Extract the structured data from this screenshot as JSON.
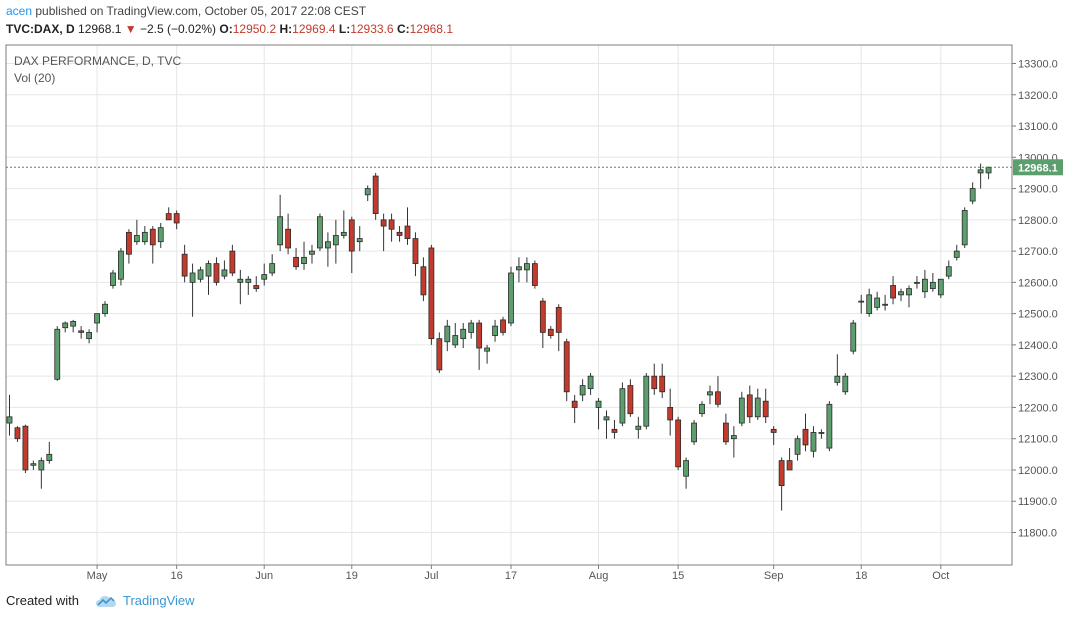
{
  "header": {
    "author": "acen",
    "published_text": "published on TradingView.com, October 05, 2017 22:08 CEST",
    "symbol": "TVC:DAX, D",
    "last": "12968.1",
    "change_arrow": "▼",
    "change": "−2.5 (−0.02%)",
    "o_label": "O:",
    "o_value": "12950.2",
    "h_label": "H:",
    "h_value": "12969.4",
    "l_label": "L:",
    "l_value": "12933.6",
    "c_label": "C:",
    "c_value": "12968.1"
  },
  "footer": {
    "created_with": "Created with",
    "brand": "TradingView"
  },
  "colors": {
    "up": "#5c9e6e",
    "down": "#c23b2c",
    "wick": "#333333",
    "grid": "#e6e6e6"
  },
  "chart_data": {
    "type": "candlestick",
    "title": "DAX PERFORMANCE, D, TVC",
    "indicator": "Vol (20)",
    "ylim": [
      11750,
      13350
    ],
    "yticks": [
      11800,
      11900,
      12000,
      12100,
      12200,
      12300,
      12400,
      12500,
      12600,
      12700,
      12800,
      12900,
      13000,
      13100,
      13200,
      13300
    ],
    "ytick_labels": [
      "11800.0",
      "11900.0",
      "12000.0",
      "12100.0",
      "12200.0",
      "12300.0",
      "12400.0",
      "12500.0",
      "12600.0",
      "12700.0",
      "12800.0",
      "12900.0",
      "13000.0",
      "13100.0",
      "13200.0",
      "13300.0"
    ],
    "xticks": [
      {
        "label": "May",
        "index": 11
      },
      {
        "label": "16",
        "index": 21
      },
      {
        "label": "Jun",
        "index": 32
      },
      {
        "label": "19",
        "index": 43
      },
      {
        "label": "Jul",
        "index": 53
      },
      {
        "label": "17",
        "index": 63
      },
      {
        "label": "Aug",
        "index": 74
      },
      {
        "label": "15",
        "index": 84
      },
      {
        "label": "Sep",
        "index": 96
      },
      {
        "label": "18",
        "index": 107
      },
      {
        "label": "Oct",
        "index": 117
      }
    ],
    "last_price": 12968.1,
    "last_price_label": "12968.1",
    "candles": [
      {
        "o": 12150,
        "h": 12240,
        "l": 12110,
        "c": 12170
      },
      {
        "o": 12135,
        "h": 12140,
        "l": 12090,
        "c": 12100
      },
      {
        "o": 12140,
        "h": 12145,
        "l": 11990,
        "c": 12000
      },
      {
        "o": 12015,
        "h": 12030,
        "l": 12000,
        "c": 12020
      },
      {
        "o": 12000,
        "h": 12040,
        "l": 11940,
        "c": 12030
      },
      {
        "o": 12030,
        "h": 12090,
        "l": 12020,
        "c": 12050
      },
      {
        "o": 12290,
        "h": 12460,
        "l": 12285,
        "c": 12450
      },
      {
        "o": 12455,
        "h": 12475,
        "l": 12440,
        "c": 12470
      },
      {
        "o": 12460,
        "h": 12480,
        "l": 12440,
        "c": 12475
      },
      {
        "o": 12445,
        "h": 12460,
        "l": 12420,
        "c": 12440
      },
      {
        "o": 12420,
        "h": 12450,
        "l": 12405,
        "c": 12440
      },
      {
        "o": 12470,
        "h": 12500,
        "l": 12440,
        "c": 12500
      },
      {
        "o": 12500,
        "h": 12540,
        "l": 12490,
        "c": 12530
      },
      {
        "o": 12590,
        "h": 12640,
        "l": 12580,
        "c": 12630
      },
      {
        "o": 12610,
        "h": 12710,
        "l": 12590,
        "c": 12700
      },
      {
        "o": 12760,
        "h": 12770,
        "l": 12660,
        "c": 12690
      },
      {
        "o": 12730,
        "h": 12800,
        "l": 12720,
        "c": 12750
      },
      {
        "o": 12730,
        "h": 12780,
        "l": 12720,
        "c": 12760
      },
      {
        "o": 12770,
        "h": 12780,
        "l": 12660,
        "c": 12720
      },
      {
        "o": 12730,
        "h": 12790,
        "l": 12710,
        "c": 12775
      },
      {
        "o": 12820,
        "h": 12840,
        "l": 12800,
        "c": 12800
      },
      {
        "o": 12820,
        "h": 12830,
        "l": 12770,
        "c": 12790
      },
      {
        "o": 12690,
        "h": 12720,
        "l": 12600,
        "c": 12620
      },
      {
        "o": 12600,
        "h": 12660,
        "l": 12490,
        "c": 12630
      },
      {
        "o": 12610,
        "h": 12650,
        "l": 12600,
        "c": 12640
      },
      {
        "o": 12620,
        "h": 12670,
        "l": 12560,
        "c": 12660
      },
      {
        "o": 12660,
        "h": 12680,
        "l": 12590,
        "c": 12600
      },
      {
        "o": 12620,
        "h": 12670,
        "l": 12610,
        "c": 12640
      },
      {
        "o": 12700,
        "h": 12720,
        "l": 12620,
        "c": 12630
      },
      {
        "o": 12600,
        "h": 12640,
        "l": 12530,
        "c": 12610
      },
      {
        "o": 12600,
        "h": 12620,
        "l": 12560,
        "c": 12610
      },
      {
        "o": 12590,
        "h": 12620,
        "l": 12570,
        "c": 12580
      },
      {
        "o": 12610,
        "h": 12660,
        "l": 12590,
        "c": 12625
      },
      {
        "o": 12630,
        "h": 12690,
        "l": 12620,
        "c": 12660
      },
      {
        "o": 12720,
        "h": 12880,
        "l": 12700,
        "c": 12810
      },
      {
        "o": 12770,
        "h": 12820,
        "l": 12690,
        "c": 12710
      },
      {
        "o": 12680,
        "h": 12710,
        "l": 12640,
        "c": 12650
      },
      {
        "o": 12660,
        "h": 12730,
        "l": 12640,
        "c": 12680
      },
      {
        "o": 12690,
        "h": 12720,
        "l": 12660,
        "c": 12700
      },
      {
        "o": 12710,
        "h": 12820,
        "l": 12700,
        "c": 12810
      },
      {
        "o": 12710,
        "h": 12760,
        "l": 12650,
        "c": 12730
      },
      {
        "o": 12720,
        "h": 12800,
        "l": 12660,
        "c": 12750
      },
      {
        "o": 12750,
        "h": 12830,
        "l": 12740,
        "c": 12760
      },
      {
        "o": 12800,
        "h": 12810,
        "l": 12630,
        "c": 12700
      },
      {
        "o": 12730,
        "h": 12780,
        "l": 12700,
        "c": 12740
      },
      {
        "o": 12880,
        "h": 12910,
        "l": 12860,
        "c": 12900
      },
      {
        "o": 12940,
        "h": 12950,
        "l": 12800,
        "c": 12820
      },
      {
        "o": 12800,
        "h": 12820,
        "l": 12700,
        "c": 12780
      },
      {
        "o": 12800,
        "h": 12820,
        "l": 12730,
        "c": 12770
      },
      {
        "o": 12760,
        "h": 12780,
        "l": 12730,
        "c": 12750
      },
      {
        "o": 12780,
        "h": 12840,
        "l": 12720,
        "c": 12740
      },
      {
        "o": 12740,
        "h": 12760,
        "l": 12620,
        "c": 12660
      },
      {
        "o": 12650,
        "h": 12680,
        "l": 12540,
        "c": 12560
      },
      {
        "o": 12710,
        "h": 12720,
        "l": 12400,
        "c": 12420
      },
      {
        "o": 12420,
        "h": 12440,
        "l": 12310,
        "c": 12320
      },
      {
        "o": 12410,
        "h": 12480,
        "l": 12380,
        "c": 12460
      },
      {
        "o": 12400,
        "h": 12470,
        "l": 12390,
        "c": 12430
      },
      {
        "o": 12420,
        "h": 12470,
        "l": 12390,
        "c": 12450
      },
      {
        "o": 12440,
        "h": 12480,
        "l": 12420,
        "c": 12470
      },
      {
        "o": 12470,
        "h": 12480,
        "l": 12320,
        "c": 12390
      },
      {
        "o": 12380,
        "h": 12400,
        "l": 12340,
        "c": 12390
      },
      {
        "o": 12430,
        "h": 12480,
        "l": 12410,
        "c": 12460
      },
      {
        "o": 12480,
        "h": 12490,
        "l": 12430,
        "c": 12440
      },
      {
        "o": 12470,
        "h": 12650,
        "l": 12460,
        "c": 12630
      },
      {
        "o": 12640,
        "h": 12680,
        "l": 12600,
        "c": 12650
      },
      {
        "o": 12640,
        "h": 12680,
        "l": 12600,
        "c": 12660
      },
      {
        "o": 12660,
        "h": 12670,
        "l": 12580,
        "c": 12590
      },
      {
        "o": 12540,
        "h": 12550,
        "l": 12390,
        "c": 12440
      },
      {
        "o": 12450,
        "h": 12460,
        "l": 12420,
        "c": 12430
      },
      {
        "o": 12520,
        "h": 12530,
        "l": 12380,
        "c": 12440
      },
      {
        "o": 12410,
        "h": 12420,
        "l": 12220,
        "c": 12250
      },
      {
        "o": 12220,
        "h": 12240,
        "l": 12150,
        "c": 12200
      },
      {
        "o": 12240,
        "h": 12290,
        "l": 12220,
        "c": 12270
      },
      {
        "o": 12260,
        "h": 12310,
        "l": 12240,
        "c": 12300
      },
      {
        "o": 12200,
        "h": 12230,
        "l": 12130,
        "c": 12220
      },
      {
        "o": 12160,
        "h": 12190,
        "l": 12100,
        "c": 12170
      },
      {
        "o": 12130,
        "h": 12160,
        "l": 12100,
        "c": 12120
      },
      {
        "o": 12150,
        "h": 12280,
        "l": 12140,
        "c": 12260
      },
      {
        "o": 12270,
        "h": 12290,
        "l": 12170,
        "c": 12180
      },
      {
        "o": 12130,
        "h": 12170,
        "l": 12100,
        "c": 12140
      },
      {
        "o": 12140,
        "h": 12310,
        "l": 12130,
        "c": 12300
      },
      {
        "o": 12300,
        "h": 12340,
        "l": 12240,
        "c": 12260
      },
      {
        "o": 12300,
        "h": 12340,
        "l": 12230,
        "c": 12250
      },
      {
        "o": 12200,
        "h": 12260,
        "l": 12110,
        "c": 12160
      },
      {
        "o": 12160,
        "h": 12170,
        "l": 12000,
        "c": 12010
      },
      {
        "o": 11980,
        "h": 12040,
        "l": 11940,
        "c": 12030
      },
      {
        "o": 12090,
        "h": 12160,
        "l": 12080,
        "c": 12150
      },
      {
        "o": 12180,
        "h": 12220,
        "l": 12170,
        "c": 12210
      },
      {
        "o": 12240,
        "h": 12270,
        "l": 12210,
        "c": 12250
      },
      {
        "o": 12250,
        "h": 12300,
        "l": 12200,
        "c": 12210
      },
      {
        "o": 12150,
        "h": 12180,
        "l": 12080,
        "c": 12090
      },
      {
        "o": 12100,
        "h": 12140,
        "l": 12040,
        "c": 12110
      },
      {
        "o": 12150,
        "h": 12250,
        "l": 12140,
        "c": 12230
      },
      {
        "o": 12240,
        "h": 12270,
        "l": 12150,
        "c": 12170
      },
      {
        "o": 12170,
        "h": 12260,
        "l": 12160,
        "c": 12230
      },
      {
        "o": 12220,
        "h": 12260,
        "l": 12150,
        "c": 12170
      },
      {
        "o": 12130,
        "h": 12140,
        "l": 12080,
        "c": 12120
      },
      {
        "o": 12030,
        "h": 12040,
        "l": 11870,
        "c": 11950
      },
      {
        "o": 12030,
        "h": 12070,
        "l": 12000,
        "c": 12000
      },
      {
        "o": 12050,
        "h": 12110,
        "l": 12030,
        "c": 12100
      },
      {
        "o": 12130,
        "h": 12180,
        "l": 12060,
        "c": 12080
      },
      {
        "o": 12060,
        "h": 12140,
        "l": 12040,
        "c": 12120
      },
      {
        "o": 12120,
        "h": 12130,
        "l": 12100,
        "c": 12120
      },
      {
        "o": 12070,
        "h": 12220,
        "l": 12060,
        "c": 12210
      },
      {
        "o": 12280,
        "h": 12370,
        "l": 12270,
        "c": 12300
      },
      {
        "o": 12250,
        "h": 12310,
        "l": 12240,
        "c": 12300
      },
      {
        "o": 12380,
        "h": 12480,
        "l": 12370,
        "c": 12470
      },
      {
        "o": 12540,
        "h": 12560,
        "l": 12500,
        "c": 12540
      },
      {
        "o": 12500,
        "h": 12580,
        "l": 12490,
        "c": 12560
      },
      {
        "o": 12520,
        "h": 12570,
        "l": 12510,
        "c": 12550
      },
      {
        "o": 12530,
        "h": 12560,
        "l": 12510,
        "c": 12530
      },
      {
        "o": 12590,
        "h": 12620,
        "l": 12530,
        "c": 12550
      },
      {
        "o": 12560,
        "h": 12580,
        "l": 12540,
        "c": 12570
      },
      {
        "o": 12560,
        "h": 12590,
        "l": 12520,
        "c": 12580
      },
      {
        "o": 12600,
        "h": 12620,
        "l": 12580,
        "c": 12600
      },
      {
        "o": 12570,
        "h": 12640,
        "l": 12550,
        "c": 12610
      },
      {
        "o": 12580,
        "h": 12630,
        "l": 12570,
        "c": 12600
      },
      {
        "o": 12560,
        "h": 12610,
        "l": 12550,
        "c": 12610
      },
      {
        "o": 12620,
        "h": 12670,
        "l": 12610,
        "c": 12650
      },
      {
        "o": 12680,
        "h": 12720,
        "l": 12670,
        "c": 12700
      },
      {
        "o": 12720,
        "h": 12840,
        "l": 12710,
        "c": 12830
      },
      {
        "o": 12860,
        "h": 12920,
        "l": 12850,
        "c": 12900
      },
      {
        "o": 12950,
        "h": 12980,
        "l": 12900,
        "c": 12960
      },
      {
        "o": 12950,
        "h": 12970,
        "l": 12930,
        "c": 12968
      }
    ]
  }
}
